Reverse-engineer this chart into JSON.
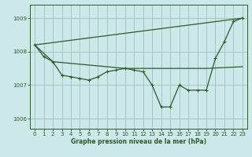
{
  "bg_color": "#cce8e8",
  "grid_color": "#9fbfbf",
  "line_color": "#2d5a2d",
  "marker_color": "#2d5a2d",
  "xlabel": "Graphe pression niveau de la mer (hPa)",
  "xlabel_color": "#2d5a2d",
  "ylim": [
    1005.7,
    1009.4
  ],
  "xlim": [
    -0.5,
    23.5
  ],
  "yticks": [
    1006,
    1007,
    1008,
    1009
  ],
  "xticks": [
    0,
    1,
    2,
    3,
    4,
    5,
    6,
    7,
    8,
    9,
    10,
    11,
    12,
    13,
    14,
    15,
    16,
    17,
    18,
    19,
    20,
    21,
    22,
    23
  ],
  "series1_x": [
    0,
    1,
    2,
    3,
    4,
    5,
    6,
    7,
    8,
    9,
    10,
    11,
    12,
    13,
    14,
    15,
    16,
    17,
    18,
    19,
    20,
    21,
    22,
    23
  ],
  "series1_y": [
    1008.2,
    1007.85,
    1007.7,
    1007.3,
    1007.25,
    1007.2,
    1007.15,
    1007.25,
    1007.4,
    1007.45,
    1007.5,
    1007.45,
    1007.4,
    1007.0,
    1006.35,
    1006.35,
    1007.0,
    1006.85,
    1006.85,
    1006.85,
    1007.8,
    1008.3,
    1008.9,
    1009.0
  ],
  "series2_x": [
    0,
    23
  ],
  "series2_y": [
    1008.2,
    1009.0
  ],
  "series3_x": [
    0,
    2,
    10,
    19,
    23
  ],
  "series3_y": [
    1008.2,
    1007.7,
    1007.5,
    1007.5,
    1007.55
  ],
  "lw": 0.9,
  "ms": 2.8
}
